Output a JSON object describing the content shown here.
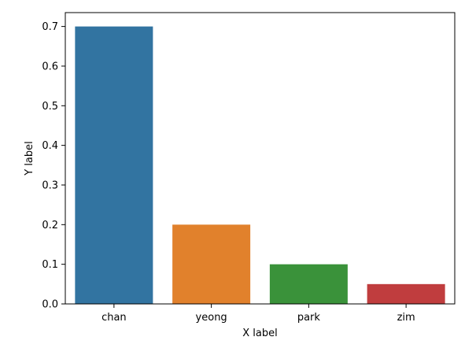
{
  "chart_data": {
    "type": "bar",
    "categories": [
      "chan",
      "yeong",
      "park",
      "zim"
    ],
    "values": [
      0.7,
      0.2,
      0.1,
      0.05
    ],
    "colors": [
      "#3274a1",
      "#e1812c",
      "#3a923a",
      "#c03d3e"
    ],
    "title": "",
    "xlabel": "X label",
    "ylabel": "Y label",
    "ylim": [
      0,
      0.735
    ],
    "yticks": [
      0.0,
      0.1,
      0.2,
      0.3,
      0.4,
      0.5,
      0.6,
      0.7
    ],
    "ytick_labels": [
      "0.0",
      "0.1",
      "0.2",
      "0.3",
      "0.4",
      "0.5",
      "0.6",
      "0.7"
    ],
    "grid": false,
    "legend": "none"
  }
}
